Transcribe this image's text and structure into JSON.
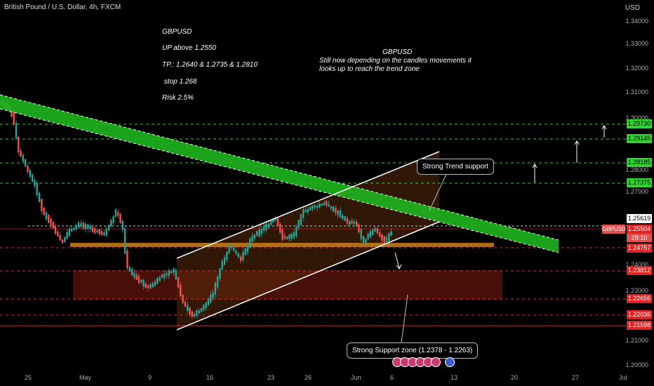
{
  "header": {
    "symbol_title": "British Pound / U.S. Dollar, 4h, FXCM",
    "currency": "USD"
  },
  "notes": {
    "left": [
      "GBPUSD",
      "UP above 1.2550",
      "TP.: 1.2640  & 1.2735 & 1.2810",
      " stop 1.268",
      "Risk 2.5%"
    ],
    "right": [
      "GBPUSD",
      "Still now depending on the candles movements it",
      "looks up to reach the trend zone"
    ]
  },
  "callouts": {
    "trend": "Strong Trend support",
    "support": "Strong Support zone (1.2378 - 1.2263)"
  },
  "price_axis": [
    "1.34000",
    "1.33000",
    "1.32000",
    "1.31000",
    "1.30000",
    "1.28000",
    "1.27000",
    "1.24000",
    "1.23000",
    "1.21000",
    "1.20000"
  ],
  "time_axis": [
    "25",
    "May",
    "9",
    "16",
    "23",
    "26",
    "Jun",
    "6",
    "13",
    "20",
    "27",
    "Jul"
  ],
  "price_labels": [
    {
      "value": "1.29730",
      "style": "green"
    },
    {
      "value": "1.29145",
      "style": "green"
    },
    {
      "value": "1.28185",
      "style": "green"
    },
    {
      "value": "1.27375",
      "style": "green"
    },
    {
      "value": "1.25619",
      "style": "white"
    },
    {
      "value": "1.25504",
      "style": "red"
    },
    {
      "value": "1.24757",
      "style": "red"
    },
    {
      "value": "1.23812",
      "style": "red"
    },
    {
      "value": "1.22656",
      "style": "red"
    },
    {
      "value": "1.22036",
      "style": "red"
    },
    {
      "value": "1.21598",
      "style": "red"
    }
  ],
  "current_symbol": "GBPUSD",
  "countdown": "28:10",
  "colors": {
    "bull": "#26a69a",
    "bear": "#ef5350",
    "channel": "#ffffff",
    "trend_zone": "#1fb51f",
    "support_zone": "#5a1410",
    "tp_line": "#2fd32f",
    "sl_line": "#e02424"
  }
}
